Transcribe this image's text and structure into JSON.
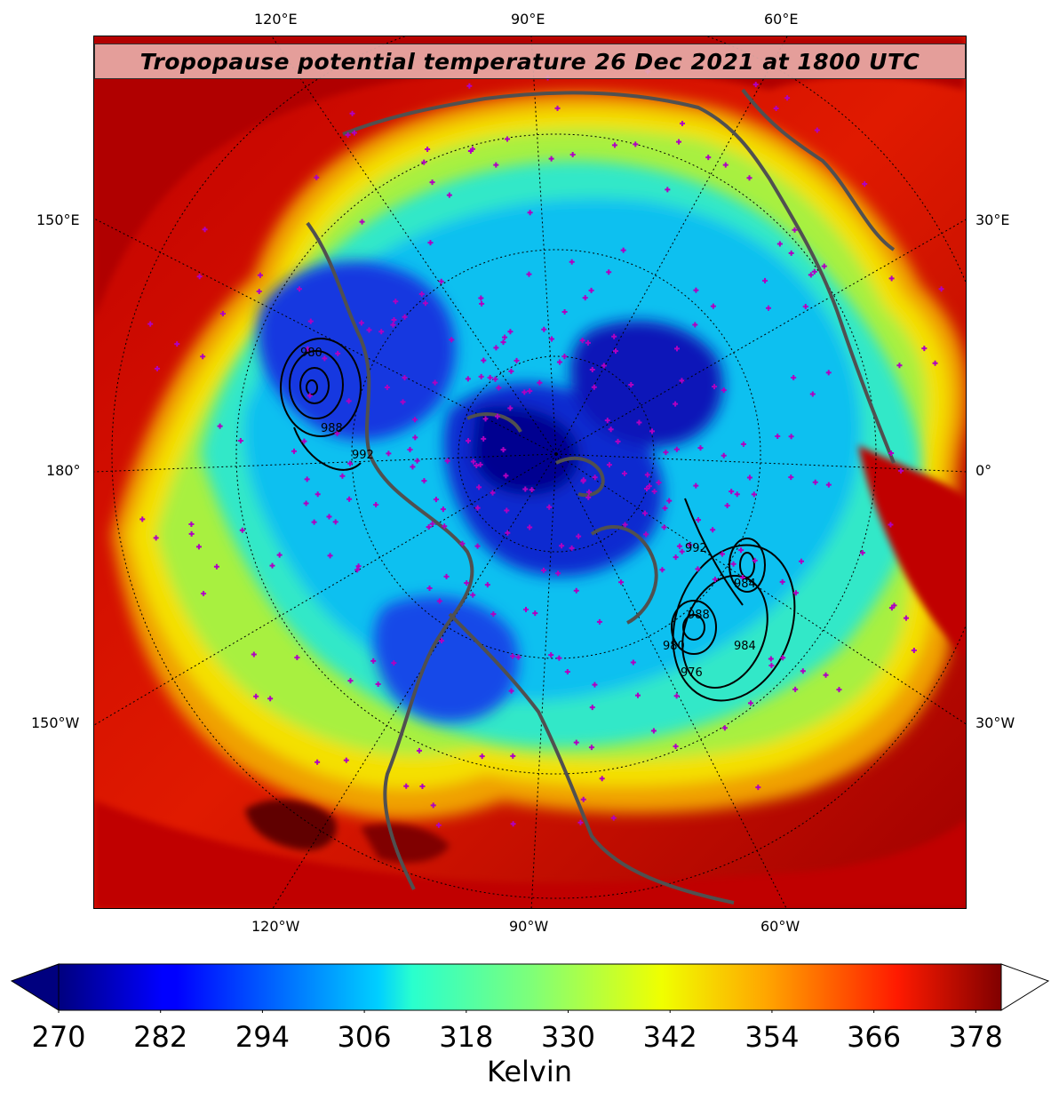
{
  "title": "Tropopause potential temperature 26 Dec 2021 at 1800 UTC",
  "axes": {
    "top": [
      "120°E",
      "90°E",
      "60°E"
    ],
    "bottom": [
      "120°W",
      "90°W",
      "60°W"
    ],
    "left": [
      "150°E",
      "180°",
      "150°W"
    ],
    "right": [
      "30°E",
      "0°",
      "30°W"
    ]
  },
  "colorbar": {
    "ticks": [
      "270",
      "282",
      "294",
      "306",
      "318",
      "330",
      "342",
      "354",
      "366",
      "378"
    ],
    "label": "Kelvin",
    "range_min": 270,
    "range_max": 381,
    "colormap": "jet",
    "extend": "both"
  },
  "pressure_contours": {
    "labels": [
      "980",
      "988",
      "992",
      "992",
      "984",
      "988",
      "984",
      "976",
      "980"
    ],
    "unit": "hPa"
  },
  "colors": {
    "station_marker": "#b000c0",
    "coastline": "#505050",
    "contour": "#000000",
    "banner": "#ebb4af"
  }
}
